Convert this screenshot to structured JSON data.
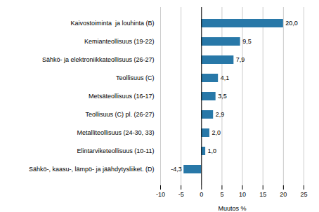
{
  "chart_data": {
    "type": "bar",
    "orientation": "horizontal",
    "xlabel": "Muutos %",
    "categories": [
      "Sähkö-, kaasu-, lämpö- ja jäähdytysliiket. (D)",
      "Elintarviketeollisuus (10-11)",
      "Metalliteollisuus (24-30, 33)",
      "Teollisuus (C) pl. (26-27)",
      "Metsäteollisuus (16-17)",
      "Teollisuus (C)",
      "Sähkö- ja elektroniikkateollisuus (26-27)",
      "Kemianteollisuus (19-22)",
      "Kaivostoiminta  ja louhinta (B)"
    ],
    "values": [
      -4.3,
      1.0,
      2.0,
      2.9,
      3.5,
      4.1,
      7.9,
      9.5,
      20.0
    ],
    "value_labels": [
      "-4,3",
      "1,0",
      "2,0",
      "2,9",
      "3,5",
      "4,1",
      "7,9",
      "9,5",
      "20,0"
    ],
    "data_labels": true,
    "color": "#2878a8",
    "xlim": [
      -10,
      25
    ],
    "xticks": [
      -10,
      -5,
      0,
      5,
      10,
      15,
      20,
      25
    ],
    "grid": true
  }
}
